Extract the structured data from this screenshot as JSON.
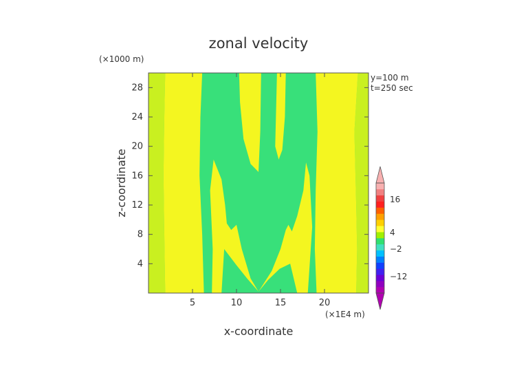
{
  "chart_data": {
    "type": "heatmap",
    "title": "zonal velocity",
    "xlabel": "x-coordinate",
    "ylabel": "z-coordinate",
    "x_unit": "(×1E4 m)",
    "y_unit": "(×1000 m)",
    "info": [
      "y=100 m",
      "t=250 sec"
    ],
    "xlim": [
      0,
      25
    ],
    "ylim": [
      0,
      30
    ],
    "x_ticks": [
      "5",
      "10",
      "15",
      "20"
    ],
    "x_tick_values": [
      5,
      10,
      15,
      20
    ],
    "y_ticks": [
      "4",
      "8",
      "12",
      "16",
      "20",
      "24",
      "28"
    ],
    "y_tick_values": [
      4,
      8,
      12,
      16,
      20,
      24,
      28
    ],
    "colorbar": {
      "tick_labels": [
        "16",
        "4",
        "−2",
        "−12"
      ],
      "tick_values": [
        16,
        4,
        -2,
        -12
      ],
      "range": [
        -18,
        22
      ],
      "colors": [
        "#b000b0",
        "#9000c0",
        "#6a00d8",
        "#4020f0",
        "#1040ff",
        "#0080ff",
        "#00c0ff",
        "#40e0c0",
        "#30e070",
        "#a0f000",
        "#ffff30",
        "#ffd000",
        "#ffa000",
        "#ff6000",
        "#ff2020",
        "#f04040",
        "#f08080",
        "#f8b0b0"
      ],
      "colors_note": "listed from min (bottom) to max (top)"
    },
    "regions": [
      {
        "level": "green",
        "color": "#38e07a",
        "description": "background field"
      },
      {
        "level": "yellow",
        "color": "#f4f620",
        "description": "banded / branching structures"
      },
      {
        "level": "yellow-green",
        "color": "#c9f020",
        "description": "edge strips"
      }
    ]
  }
}
